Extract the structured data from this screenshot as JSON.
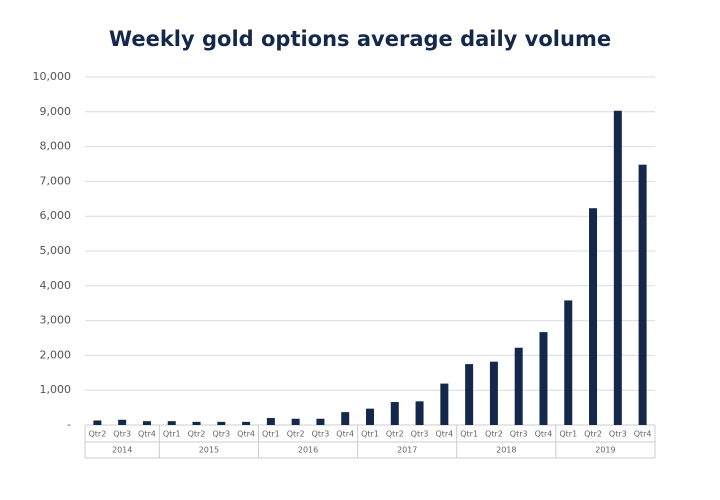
{
  "chart_data": {
    "type": "bar",
    "title": "Weekly gold options average daily volume",
    "color": "#14284b",
    "grid": true,
    "category_groups": [
      {
        "name": "2014",
        "categories": [
          "Qtr2",
          "Qtr3",
          "Qtr4"
        ]
      },
      {
        "name": "2015",
        "categories": [
          "Qtr1",
          "Qtr2",
          "Qtr3",
          "Qtr4"
        ]
      },
      {
        "name": "2016",
        "categories": [
          "Qtr1",
          "Qtr2",
          "Qtr3",
          "Qtr4"
        ]
      },
      {
        "name": "2017",
        "categories": [
          "Qtr1",
          "Qtr2",
          "Qtr3",
          "Qtr4"
        ]
      },
      {
        "name": "2018",
        "categories": [
          "Qtr1",
          "Qtr2",
          "Qtr3",
          "Qtr4"
        ]
      },
      {
        "name": "2019",
        "categories": [
          "Qtr1",
          "Qtr2",
          "Qtr3",
          "Qtr4"
        ]
      }
    ],
    "values": [
      130,
      150,
      110,
      110,
      90,
      90,
      90,
      200,
      180,
      180,
      370,
      470,
      660,
      680,
      1190,
      1750,
      1820,
      2220,
      2670,
      3580,
      6230,
      9030,
      7480
    ],
    "ylim": [
      0,
      10000
    ],
    "yticks": [
      {
        "value": 0,
        "label": "-"
      },
      {
        "value": 1000,
        "label": "1,000"
      },
      {
        "value": 2000,
        "label": "2,000"
      },
      {
        "value": 3000,
        "label": "3,000"
      },
      {
        "value": 4000,
        "label": "4,000"
      },
      {
        "value": 5000,
        "label": "5,000"
      },
      {
        "value": 6000,
        "label": "6,000"
      },
      {
        "value": 7000,
        "label": "7,000"
      },
      {
        "value": 8000,
        "label": "8,000"
      },
      {
        "value": 9000,
        "label": "9,000"
      },
      {
        "value": 10000,
        "label": "10,000"
      }
    ]
  }
}
